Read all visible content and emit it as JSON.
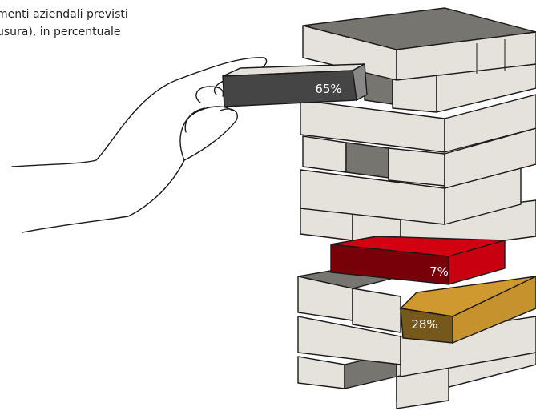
{
  "chart_data": {
    "type": "pictogram",
    "title_lines": [
      "menti aziendali previsti",
      "usura), in percentuale"
    ],
    "categories": [
      null,
      null,
      null
    ],
    "values": [
      65,
      7,
      28
    ],
    "value_labels": [
      "65%",
      "7%",
      "28%"
    ],
    "colors": [
      "#454545",
      "#c8000f",
      "#c6922e"
    ]
  }
}
